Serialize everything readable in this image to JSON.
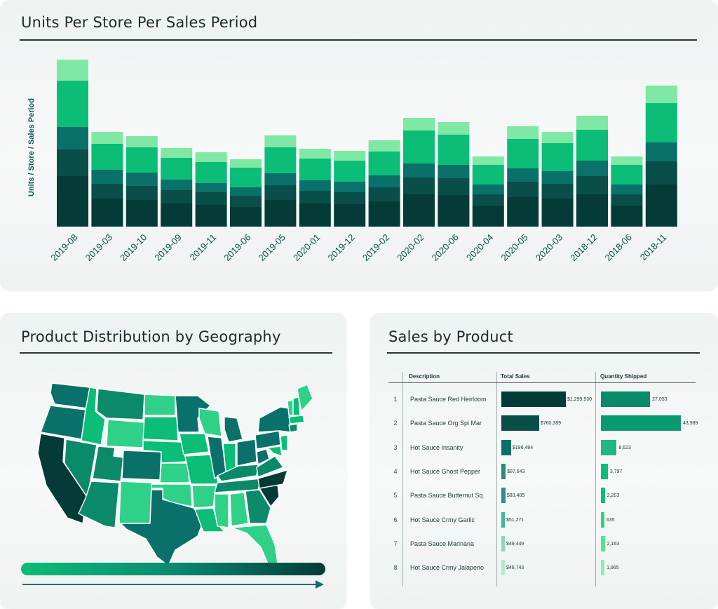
{
  "colors": {
    "layer1": "#043b37",
    "layer2": "#0a4e4a",
    "layer3": "#0a716a",
    "layer4": "#0bbd77",
    "layer5": "#7ee8a4",
    "title_rule": "#2b3433"
  },
  "chart_data": [
    {
      "type": "bar",
      "stacked": true,
      "title": "Units Per Store Per Sales Period",
      "xlabel": "",
      "ylabel": "Units / Store / Sales Period",
      "categories": [
        "2019-08",
        "2019-03",
        "2019-10",
        "2019-09",
        "2019-11",
        "2019-06",
        "2019-05",
        "2020-01",
        "2019-12",
        "2019-02",
        "2020-02",
        "2020-06",
        "2020-04",
        "2020-05",
        "2020-03",
        "2018-12",
        "2018-06",
        "2018-11"
      ],
      "series": [
        {
          "values": [
            72,
            40,
            38,
            33,
            31,
            28,
            38,
            33,
            32,
            36,
            46,
            45,
            30,
            42,
            40,
            46,
            30,
            60
          ]
        },
        {
          "values": [
            38,
            21,
            20,
            19,
            18,
            16,
            21,
            18,
            17,
            20,
            24,
            24,
            16,
            22,
            21,
            26,
            16,
            33
          ]
        },
        {
          "values": [
            32,
            20,
            19,
            15,
            13,
            12,
            17,
            15,
            15,
            17,
            20,
            19,
            14,
            19,
            18,
            22,
            14,
            27
          ]
        },
        {
          "values": [
            66,
            37,
            36,
            31,
            30,
            28,
            37,
            31,
            30,
            34,
            47,
            43,
            28,
            42,
            40,
            44,
            28,
            56
          ]
        },
        {
          "values": [
            30,
            17,
            16,
            14,
            14,
            12,
            17,
            14,
            14,
            16,
            18,
            18,
            12,
            18,
            16,
            20,
            12,
            25
          ]
        }
      ],
      "ylim": [
        0,
        260
      ],
      "grid": false,
      "legend": "none"
    },
    {
      "type": "table",
      "title": "Sales by Product",
      "columns": [
        "Description",
        "Total Sales",
        "Quantity Shipped"
      ],
      "rows": [
        {
          "rank": "1",
          "description": "Pasta Sauce Red Heirloom",
          "total_sales": 1299930,
          "total_sales_label": "$1,299,930",
          "quantity": 27053,
          "quantity_label": "27,053"
        },
        {
          "rank": "2",
          "description": "Pasta Sauce Org Spi Mar",
          "total_sales": 760389,
          "total_sales_label": "$760,389",
          "quantity": 43989,
          "quantity_label": "43,989"
        },
        {
          "rank": "3",
          "description": "Hot Sauce Insanity",
          "total_sales": 196484,
          "total_sales_label": "$196,484",
          "quantity": 8623,
          "quantity_label": "8,623"
        },
        {
          "rank": "4",
          "description": "Hot Sauce Ghost Pepper",
          "total_sales": 87643,
          "total_sales_label": "$87,643",
          "quantity": 3797,
          "quantity_label": "3,797"
        },
        {
          "rank": "5",
          "description": "Pasta Sauce Butternut Sq",
          "total_sales": 83485,
          "total_sales_label": "$83,485",
          "quantity": 2203,
          "quantity_label": "2,203"
        },
        {
          "rank": "6",
          "description": "Hot Sauce Crmy Garlic",
          "total_sales": 51271,
          "total_sales_label": "$51,271",
          "quantity": 635,
          "quantity_label": "635"
        },
        {
          "rank": "7",
          "description": "Pasta Sauce Marinana",
          "total_sales": 49449,
          "total_sales_label": "$49,449",
          "quantity": 2163,
          "quantity_label": "2,163"
        },
        {
          "rank": "8",
          "description": "Hot Sauce Crmy Jalapeno",
          "total_sales": 46743,
          "total_sales_label": "$46,743",
          "quantity": 1965,
          "quantity_label": "1,965"
        }
      ]
    }
  ],
  "map": {
    "title": "Product Distribution by Geography",
    "legend_gradient": [
      "#0bbd77",
      "#0a716a",
      "#043b37"
    ]
  }
}
